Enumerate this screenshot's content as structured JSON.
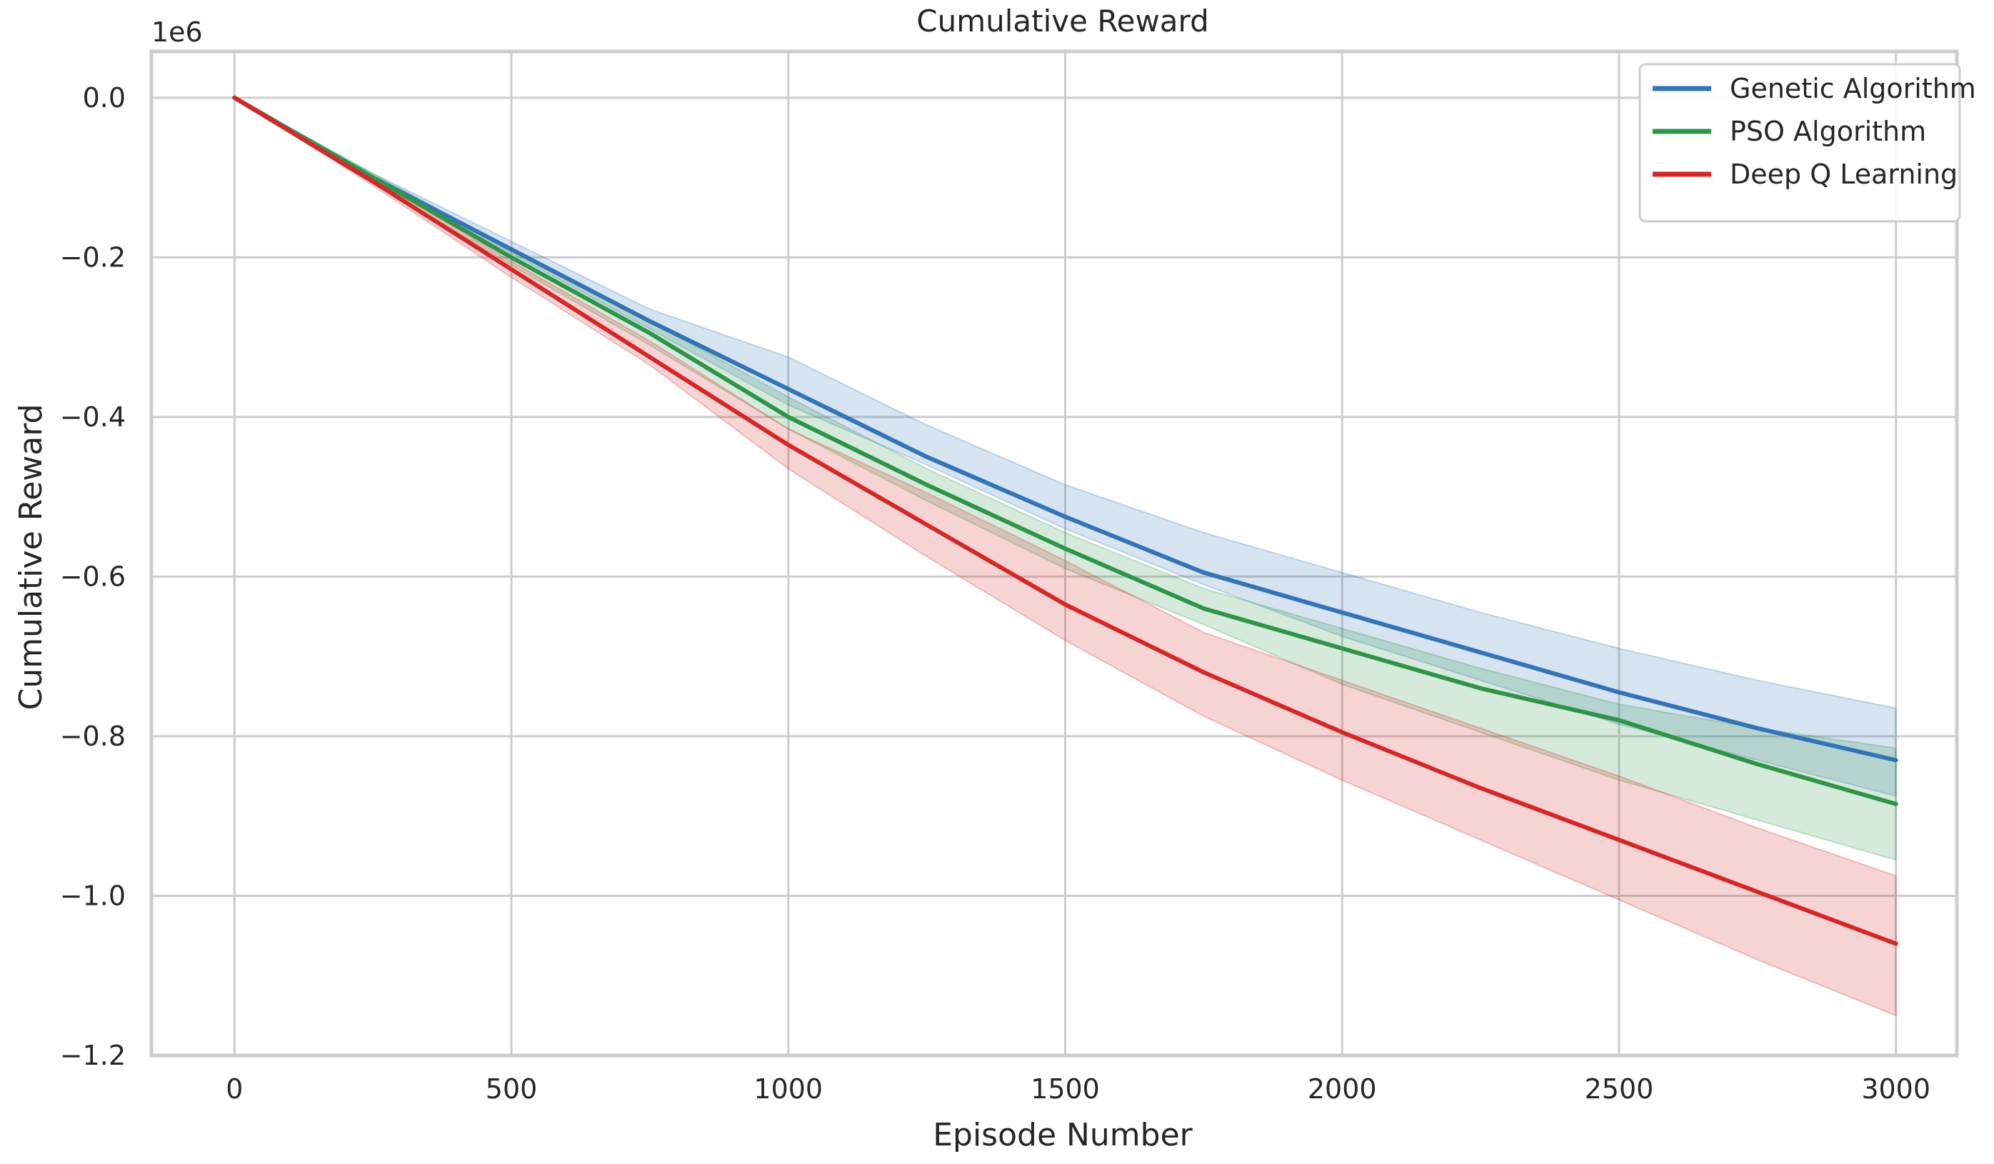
{
  "chart_data": {
    "type": "line",
    "title": "Cumulative Reward",
    "xlabel": "Episode Number",
    "ylabel": "Cumulative Reward",
    "y_offset_label": "1e6",
    "xlim": [
      -150,
      3110
    ],
    "ylim": [
      -1.2,
      0.058
    ],
    "xticks": [
      0,
      500,
      1000,
      1500,
      2000,
      2500,
      3000
    ],
    "xtick_labels": [
      "0",
      "500",
      "1000",
      "1500",
      "2000",
      "2500",
      "3000"
    ],
    "yticks": [
      0.0,
      -0.2,
      -0.4,
      -0.6,
      -0.8,
      -1.0,
      -1.2
    ],
    "ytick_labels": [
      "0.0",
      "−0.2",
      "−0.4",
      "−0.6",
      "−0.8",
      "−1.0",
      "−1.2"
    ],
    "grid": true,
    "legend_position": "top-right",
    "x": [
      0,
      250,
      500,
      750,
      1000,
      1250,
      1500,
      1750,
      2000,
      2250,
      2500,
      2750,
      3000
    ],
    "series": [
      {
        "name": "Genetic Algorithm",
        "color": "#3274b5",
        "values": [
          0.0,
          -0.1,
          -0.19,
          -0.28,
          -0.365,
          -0.45,
          -0.525,
          -0.595,
          -0.645,
          -0.695,
          -0.745,
          -0.79,
          -0.83
        ],
        "band_upper": [
          0.0,
          -0.095,
          -0.18,
          -0.265,
          -0.325,
          -0.41,
          -0.485,
          -0.545,
          -0.595,
          -0.645,
          -0.69,
          -0.73,
          -0.765
        ],
        "band_lower": [
          0.0,
          -0.105,
          -0.195,
          -0.29,
          -0.385,
          -0.46,
          -0.54,
          -0.61,
          -0.675,
          -0.73,
          -0.785,
          -0.83,
          -0.875
        ]
      },
      {
        "name": "PSO Algorithm",
        "color": "#2e9449",
        "values": [
          0.0,
          -0.1,
          -0.2,
          -0.295,
          -0.4,
          -0.485,
          -0.565,
          -0.64,
          -0.69,
          -0.74,
          -0.78,
          -0.835,
          -0.885
        ],
        "band_upper": [
          0.0,
          -0.095,
          -0.19,
          -0.28,
          -0.375,
          -0.465,
          -0.545,
          -0.615,
          -0.665,
          -0.715,
          -0.76,
          -0.79,
          -0.815
        ],
        "band_lower": [
          0.0,
          -0.105,
          -0.21,
          -0.31,
          -0.415,
          -0.505,
          -0.59,
          -0.66,
          -0.735,
          -0.795,
          -0.855,
          -0.905,
          -0.955
        ]
      },
      {
        "name": "Deep Q Learning",
        "color": "#d62728",
        "values": [
          0.0,
          -0.105,
          -0.215,
          -0.325,
          -0.435,
          -0.535,
          -0.635,
          -0.72,
          -0.795,
          -0.865,
          -0.93,
          -0.995,
          -1.06
        ],
        "band_upper": [
          0.0,
          -0.1,
          -0.205,
          -0.305,
          -0.415,
          -0.495,
          -0.58,
          -0.67,
          -0.73,
          -0.79,
          -0.85,
          -0.915,
          -0.975
        ],
        "band_lower": [
          0.0,
          -0.11,
          -0.225,
          -0.335,
          -0.465,
          -0.575,
          -0.68,
          -0.775,
          -0.855,
          -0.93,
          -1.005,
          -1.08,
          -1.15
        ]
      }
    ]
  }
}
